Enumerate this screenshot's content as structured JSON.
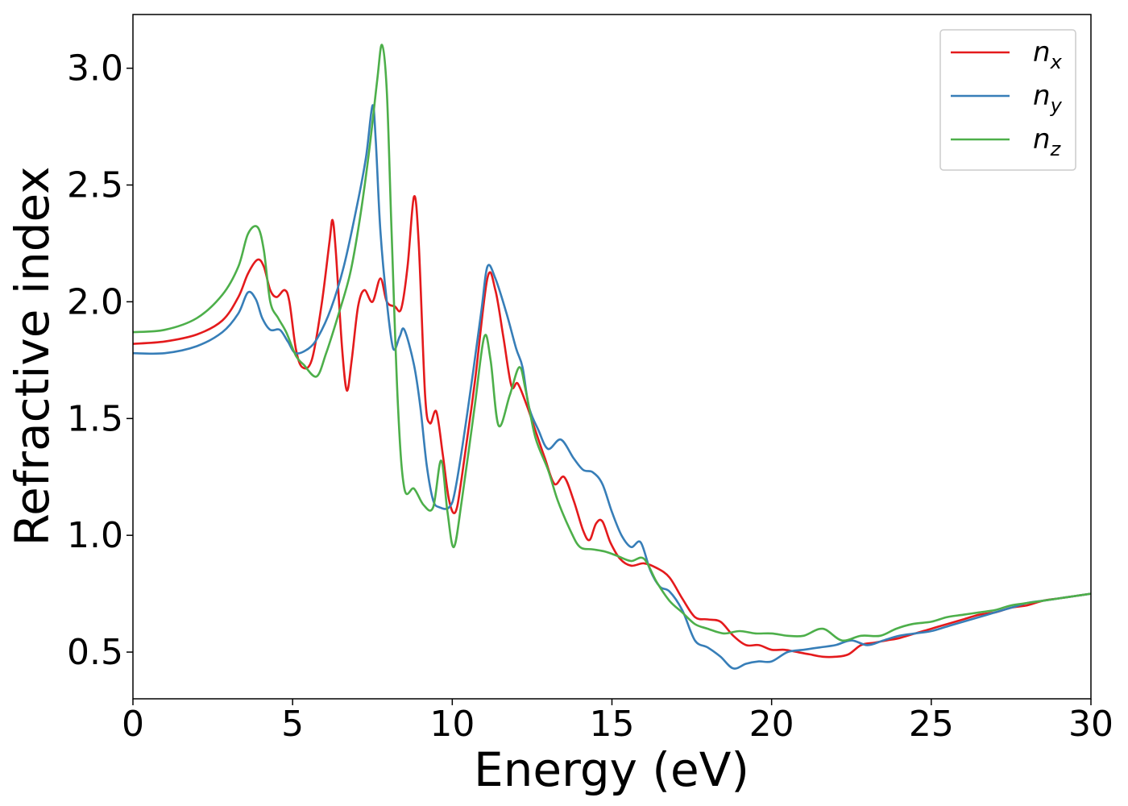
{
  "chart_data": {
    "type": "line",
    "xlabel": "Energy (eV)",
    "ylabel": "Refractive index",
    "xlim": [
      0,
      30
    ],
    "ylim": [
      0.3,
      3.23
    ],
    "xticks": [
      0,
      5,
      10,
      15,
      20,
      25,
      30
    ],
    "xtick_labels": [
      "0",
      "5",
      "10",
      "15",
      "20",
      "25",
      "30"
    ],
    "yticks": [
      0.5,
      1.0,
      1.5,
      2.0,
      2.5,
      3.0
    ],
    "ytick_labels": [
      "0.5",
      "1.0",
      "1.5",
      "2.0",
      "2.5",
      "3.0"
    ],
    "grid": false,
    "legend_position": "top-right",
    "series": [
      {
        "name": "n_x",
        "label_main": "n",
        "label_sub": "x",
        "color": "#e41a1c",
        "points": [
          [
            0,
            1.82
          ],
          [
            1,
            1.83
          ],
          [
            2,
            1.86
          ],
          [
            2.8,
            1.92
          ],
          [
            3.3,
            2.02
          ],
          [
            3.6,
            2.12
          ],
          [
            3.9,
            2.18
          ],
          [
            4.1,
            2.15
          ],
          [
            4.3,
            2.05
          ],
          [
            4.5,
            2.02
          ],
          [
            4.75,
            2.05
          ],
          [
            4.9,
            2.0
          ],
          [
            5.1,
            1.8
          ],
          [
            5.3,
            1.72
          ],
          [
            5.6,
            1.75
          ],
          [
            5.9,
            1.98
          ],
          [
            6.15,
            2.25
          ],
          [
            6.25,
            2.35
          ],
          [
            6.35,
            2.22
          ],
          [
            6.55,
            1.8
          ],
          [
            6.7,
            1.62
          ],
          [
            6.85,
            1.75
          ],
          [
            7.05,
            1.98
          ],
          [
            7.25,
            2.05
          ],
          [
            7.5,
            2.0
          ],
          [
            7.75,
            2.1
          ],
          [
            7.95,
            2.0
          ],
          [
            8.2,
            1.98
          ],
          [
            8.4,
            1.97
          ],
          [
            8.6,
            2.15
          ],
          [
            8.8,
            2.45
          ],
          [
            8.95,
            2.25
          ],
          [
            9.15,
            1.6
          ],
          [
            9.3,
            1.48
          ],
          [
            9.5,
            1.53
          ],
          [
            9.7,
            1.35
          ],
          [
            9.9,
            1.15
          ],
          [
            10.1,
            1.1
          ],
          [
            10.3,
            1.25
          ],
          [
            10.7,
            1.65
          ],
          [
            11.1,
            2.1
          ],
          [
            11.35,
            2.05
          ],
          [
            11.6,
            1.85
          ],
          [
            11.85,
            1.64
          ],
          [
            12.05,
            1.65
          ],
          [
            12.35,
            1.55
          ],
          [
            12.6,
            1.45
          ],
          [
            12.9,
            1.33
          ],
          [
            13.2,
            1.22
          ],
          [
            13.5,
            1.25
          ],
          [
            13.8,
            1.15
          ],
          [
            14.1,
            1.02
          ],
          [
            14.3,
            0.98
          ],
          [
            14.5,
            1.05
          ],
          [
            14.7,
            1.06
          ],
          [
            14.95,
            0.97
          ],
          [
            15.25,
            0.9
          ],
          [
            15.6,
            0.87
          ],
          [
            16.0,
            0.88
          ],
          [
            16.4,
            0.86
          ],
          [
            16.8,
            0.82
          ],
          [
            17.2,
            0.73
          ],
          [
            17.6,
            0.65
          ],
          [
            18.0,
            0.64
          ],
          [
            18.4,
            0.63
          ],
          [
            18.8,
            0.57
          ],
          [
            19.2,
            0.53
          ],
          [
            19.6,
            0.53
          ],
          [
            20.0,
            0.51
          ],
          [
            20.4,
            0.51
          ],
          [
            20.8,
            0.5
          ],
          [
            21.2,
            0.49
          ],
          [
            21.6,
            0.48
          ],
          [
            22.0,
            0.48
          ],
          [
            22.4,
            0.49
          ],
          [
            22.8,
            0.53
          ],
          [
            23.2,
            0.54
          ],
          [
            23.6,
            0.55
          ],
          [
            24.0,
            0.56
          ],
          [
            24.5,
            0.58
          ],
          [
            25.0,
            0.6
          ],
          [
            25.5,
            0.62
          ],
          [
            26.0,
            0.64
          ],
          [
            26.5,
            0.66
          ],
          [
            27.0,
            0.67
          ],
          [
            27.5,
            0.69
          ],
          [
            28.0,
            0.7
          ],
          [
            28.5,
            0.72
          ],
          [
            29.0,
            0.73
          ],
          [
            29.5,
            0.74
          ],
          [
            30,
            0.75
          ]
        ]
      },
      {
        "name": "n_y",
        "label_main": "n",
        "label_sub": "y",
        "color": "#377eb8",
        "points": [
          [
            0,
            1.78
          ],
          [
            1,
            1.78
          ],
          [
            2,
            1.81
          ],
          [
            2.8,
            1.87
          ],
          [
            3.3,
            1.95
          ],
          [
            3.6,
            2.04
          ],
          [
            3.85,
            2.01
          ],
          [
            4.05,
            1.93
          ],
          [
            4.3,
            1.88
          ],
          [
            4.6,
            1.88
          ],
          [
            4.85,
            1.83
          ],
          [
            5.1,
            1.78
          ],
          [
            5.5,
            1.8
          ],
          [
            5.8,
            1.85
          ],
          [
            6.2,
            1.97
          ],
          [
            6.6,
            2.15
          ],
          [
            7.0,
            2.4
          ],
          [
            7.3,
            2.62
          ],
          [
            7.5,
            2.84
          ],
          [
            7.6,
            2.7
          ],
          [
            7.75,
            2.3
          ],
          [
            7.95,
            2.0
          ],
          [
            8.15,
            1.8
          ],
          [
            8.35,
            1.85
          ],
          [
            8.5,
            1.88
          ],
          [
            8.8,
            1.73
          ],
          [
            9.0,
            1.55
          ],
          [
            9.2,
            1.3
          ],
          [
            9.4,
            1.15
          ],
          [
            9.6,
            1.12
          ],
          [
            9.9,
            1.12
          ],
          [
            10.1,
            1.2
          ],
          [
            10.5,
            1.55
          ],
          [
            10.9,
            1.95
          ],
          [
            11.1,
            2.15
          ],
          [
            11.35,
            2.1
          ],
          [
            11.7,
            1.95
          ],
          [
            12.0,
            1.8
          ],
          [
            12.2,
            1.72
          ],
          [
            12.4,
            1.55
          ],
          [
            12.7,
            1.45
          ],
          [
            13.0,
            1.37
          ],
          [
            13.4,
            1.41
          ],
          [
            13.8,
            1.33
          ],
          [
            14.1,
            1.28
          ],
          [
            14.4,
            1.27
          ],
          [
            14.7,
            1.22
          ],
          [
            15.0,
            1.1
          ],
          [
            15.3,
            1.0
          ],
          [
            15.6,
            0.95
          ],
          [
            15.9,
            0.97
          ],
          [
            16.2,
            0.85
          ],
          [
            16.5,
            0.78
          ],
          [
            16.8,
            0.76
          ],
          [
            17.2,
            0.68
          ],
          [
            17.6,
            0.55
          ],
          [
            18.0,
            0.52
          ],
          [
            18.4,
            0.48
          ],
          [
            18.8,
            0.43
          ],
          [
            19.2,
            0.45
          ],
          [
            19.6,
            0.46
          ],
          [
            20.0,
            0.46
          ],
          [
            20.5,
            0.5
          ],
          [
            21.0,
            0.51
          ],
          [
            21.5,
            0.52
          ],
          [
            22.0,
            0.53
          ],
          [
            22.5,
            0.55
          ],
          [
            23.0,
            0.53
          ],
          [
            23.5,
            0.55
          ],
          [
            24.0,
            0.57
          ],
          [
            24.5,
            0.58
          ],
          [
            25.0,
            0.59
          ],
          [
            25.5,
            0.61
          ],
          [
            26.0,
            0.63
          ],
          [
            26.5,
            0.65
          ],
          [
            27.0,
            0.67
          ],
          [
            27.5,
            0.69
          ],
          [
            28.0,
            0.71
          ],
          [
            28.5,
            0.72
          ],
          [
            29.0,
            0.73
          ],
          [
            29.5,
            0.74
          ],
          [
            30,
            0.75
          ]
        ]
      },
      {
        "name": "n_z",
        "label_main": "n",
        "label_sub": "z",
        "color": "#4daf4a",
        "points": [
          [
            0,
            1.87
          ],
          [
            1,
            1.88
          ],
          [
            2,
            1.93
          ],
          [
            2.8,
            2.03
          ],
          [
            3.3,
            2.15
          ],
          [
            3.6,
            2.29
          ],
          [
            3.9,
            2.32
          ],
          [
            4.1,
            2.22
          ],
          [
            4.3,
            2.0
          ],
          [
            4.55,
            1.93
          ],
          [
            4.8,
            1.87
          ],
          [
            5.1,
            1.77
          ],
          [
            5.35,
            1.73
          ],
          [
            5.75,
            1.68
          ],
          [
            6.05,
            1.78
          ],
          [
            6.4,
            1.93
          ],
          [
            6.8,
            2.12
          ],
          [
            7.1,
            2.35
          ],
          [
            7.4,
            2.65
          ],
          [
            7.65,
            2.95
          ],
          [
            7.8,
            3.1
          ],
          [
            7.95,
            2.9
          ],
          [
            8.1,
            2.3
          ],
          [
            8.3,
            1.55
          ],
          [
            8.5,
            1.2
          ],
          [
            8.8,
            1.2
          ],
          [
            9.1,
            1.13
          ],
          [
            9.4,
            1.12
          ],
          [
            9.65,
            1.32
          ],
          [
            9.85,
            1.1
          ],
          [
            10.05,
            0.95
          ],
          [
            10.3,
            1.15
          ],
          [
            10.7,
            1.55
          ],
          [
            11.0,
            1.85
          ],
          [
            11.2,
            1.75
          ],
          [
            11.45,
            1.47
          ],
          [
            11.8,
            1.6
          ],
          [
            12.1,
            1.72
          ],
          [
            12.3,
            1.62
          ],
          [
            12.6,
            1.42
          ],
          [
            13.0,
            1.28
          ],
          [
            13.3,
            1.15
          ],
          [
            13.7,
            1.02
          ],
          [
            14.0,
            0.95
          ],
          [
            14.4,
            0.94
          ],
          [
            14.8,
            0.93
          ],
          [
            15.2,
            0.91
          ],
          [
            15.6,
            0.89
          ],
          [
            16.0,
            0.9
          ],
          [
            16.4,
            0.8
          ],
          [
            16.8,
            0.72
          ],
          [
            17.2,
            0.67
          ],
          [
            17.6,
            0.62
          ],
          [
            18.0,
            0.6
          ],
          [
            18.5,
            0.58
          ],
          [
            19.0,
            0.59
          ],
          [
            19.5,
            0.58
          ],
          [
            20.0,
            0.58
          ],
          [
            20.5,
            0.57
          ],
          [
            21.0,
            0.57
          ],
          [
            21.6,
            0.6
          ],
          [
            22.2,
            0.55
          ],
          [
            22.8,
            0.57
          ],
          [
            23.4,
            0.57
          ],
          [
            23.9,
            0.6
          ],
          [
            24.4,
            0.62
          ],
          [
            25.0,
            0.63
          ],
          [
            25.5,
            0.65
          ],
          [
            26.0,
            0.66
          ],
          [
            26.5,
            0.67
          ],
          [
            27.0,
            0.68
          ],
          [
            27.5,
            0.7
          ],
          [
            28.0,
            0.71
          ],
          [
            28.5,
            0.72
          ],
          [
            29.0,
            0.73
          ],
          [
            29.5,
            0.74
          ],
          [
            30,
            0.75
          ]
        ]
      }
    ]
  }
}
